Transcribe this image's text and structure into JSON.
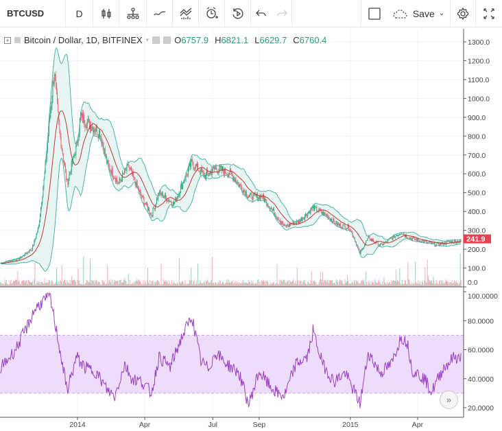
{
  "toolbar": {
    "symbol": "BTCUSD",
    "interval": "D",
    "save_label": "Save",
    "icons": [
      "candles-icon",
      "indicators-icon",
      "compare-icon",
      "templates-icon",
      "alert-icon",
      "replay-icon",
      "undo-icon",
      "redo-icon",
      "layout-icon",
      "cloud-icon",
      "settings-icon",
      "fullscreen-icon"
    ]
  },
  "legend": {
    "title": "Bitcoin / Dollar, 1D, BITFINEX",
    "o_label": "O",
    "o": "6757.9",
    "h_label": "H",
    "h": "6821.1",
    "l_label": "L",
    "l": "6629.7",
    "c_label": "C",
    "c": "6760.4"
  },
  "last_price": "241.9",
  "colors": {
    "up": "#26a07a",
    "down": "#e8606b",
    "band": "#4bb3a8",
    "basis": "#c0392b",
    "rsi": "#9b3fc2",
    "rsi_band": "#eedcfb",
    "last_price_bg": "#e8404f"
  },
  "chart_data": [
    {
      "type": "candlestick",
      "ylim": [
        0,
        1300
      ],
      "yticks": [
        "1300.0",
        "1200.0",
        "1100.0",
        "1000.0",
        "900.0",
        "800.0",
        "700.0",
        "600.0",
        "500.0",
        "400.0",
        "300.0",
        "200.0",
        "100.0",
        "0.0"
      ],
      "close": [
        [
          "2013-09-20",
          125
        ],
        [
          "2013-10-15",
          150
        ],
        [
          "2013-11-01",
          200
        ],
        [
          "2013-11-10",
          320
        ],
        [
          "2013-11-18",
          600
        ],
        [
          "2013-11-25",
          900
        ],
        [
          "2013-12-01",
          1150
        ],
        [
          "2013-12-07",
          850
        ],
        [
          "2013-12-18",
          550
        ],
        [
          "2013-12-31",
          750
        ],
        [
          "2014-01-05",
          900
        ],
        [
          "2014-01-31",
          820
        ],
        [
          "2014-02-10",
          650
        ],
        [
          "2014-02-25",
          550
        ],
        [
          "2014-03-10",
          640
        ],
        [
          "2014-03-25",
          500
        ],
        [
          "2014-04-10",
          380
        ],
        [
          "2014-04-20",
          500
        ],
        [
          "2014-05-10",
          440
        ],
        [
          "2014-05-25",
          580
        ],
        [
          "2014-06-03",
          660
        ],
        [
          "2014-06-20",
          590
        ],
        [
          "2014-07-05",
          630
        ],
        [
          "2014-07-25",
          600
        ],
        [
          "2014-08-18",
          480
        ],
        [
          "2014-09-05",
          480
        ],
        [
          "2014-09-20",
          400
        ],
        [
          "2014-10-05",
          320
        ],
        [
          "2014-10-25",
          350
        ],
        [
          "2014-11-12",
          420
        ],
        [
          "2014-11-30",
          380
        ],
        [
          "2014-12-15",
          330
        ],
        [
          "2014-12-31",
          315
        ],
        [
          "2015-01-14",
          180
        ],
        [
          "2015-01-25",
          260
        ],
        [
          "2015-02-10",
          220
        ],
        [
          "2015-03-10",
          290
        ],
        [
          "2015-03-20",
          260
        ],
        [
          "2015-04-10",
          240
        ],
        [
          "2015-04-25",
          225
        ],
        [
          "2015-05-15",
          240
        ],
        [
          "2015-05-29",
          241.9
        ]
      ]
    },
    {
      "type": "line",
      "ylim": [
        12,
        102
      ],
      "overbought": 70,
      "oversold": 30,
      "yticks": [
        "100.0000",
        "80.0000",
        "60.0000",
        "40.0000",
        "20.0000"
      ],
      "values": [
        [
          "2013-09-20",
          47
        ],
        [
          "2013-10-10",
          60
        ],
        [
          "2013-10-25",
          75
        ],
        [
          "2013-11-05",
          88
        ],
        [
          "2013-11-15",
          93
        ],
        [
          "2013-11-25",
          97
        ],
        [
          "2013-12-05",
          70
        ],
        [
          "2013-12-18",
          32
        ],
        [
          "2013-12-31",
          55
        ],
        [
          "2014-01-10",
          48
        ],
        [
          "2014-01-25",
          45
        ],
        [
          "2014-02-10",
          32
        ],
        [
          "2014-02-20",
          28
        ],
        [
          "2014-03-05",
          50
        ],
        [
          "2014-03-15",
          40
        ],
        [
          "2014-03-28",
          38
        ],
        [
          "2014-04-10",
          30
        ],
        [
          "2014-04-20",
          55
        ],
        [
          "2014-05-05",
          48
        ],
        [
          "2014-05-20",
          68
        ],
        [
          "2014-06-03",
          83
        ],
        [
          "2014-06-15",
          52
        ],
        [
          "2014-06-25",
          47
        ],
        [
          "2014-07-05",
          58
        ],
        [
          "2014-07-20",
          50
        ],
        [
          "2014-08-05",
          44
        ],
        [
          "2014-08-18",
          22
        ],
        [
          "2014-09-01",
          45
        ],
        [
          "2014-09-15",
          35
        ],
        [
          "2014-09-25",
          30
        ],
        [
          "2014-10-05",
          28
        ],
        [
          "2014-10-20",
          50
        ],
        [
          "2014-11-05",
          55
        ],
        [
          "2014-11-12",
          73
        ],
        [
          "2014-11-25",
          50
        ],
        [
          "2014-12-10",
          38
        ],
        [
          "2014-12-25",
          44
        ],
        [
          "2015-01-14",
          23
        ],
        [
          "2015-01-25",
          58
        ],
        [
          "2015-02-10",
          44
        ],
        [
          "2015-02-25",
          50
        ],
        [
          "2015-03-10",
          69
        ],
        [
          "2015-03-18",
          65
        ],
        [
          "2015-03-25",
          46
        ],
        [
          "2015-04-10",
          40
        ],
        [
          "2015-04-20",
          31
        ],
        [
          "2015-05-05",
          47
        ],
        [
          "2015-05-20",
          55
        ],
        [
          "2015-05-29",
          54
        ]
      ]
    },
    {
      "type": "axis",
      "xticks": [
        [
          "2014-01-01",
          "2014"
        ],
        [
          "2014-04-01",
          "Apr"
        ],
        [
          "2014-07-01",
          "Jul"
        ],
        [
          "2014-09-01",
          "Sep"
        ],
        [
          "2015-01-01",
          "2015"
        ],
        [
          "2015-04-01",
          "Apr"
        ]
      ]
    }
  ]
}
